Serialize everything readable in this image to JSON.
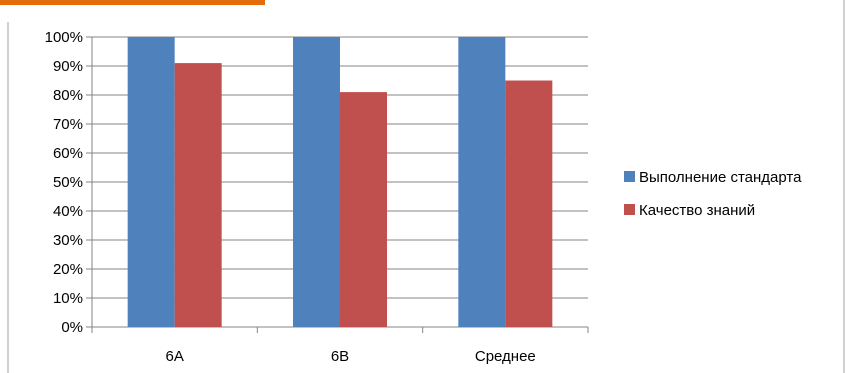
{
  "chart_data": {
    "type": "bar",
    "categories": [
      "6А",
      "6В",
      "Среднее"
    ],
    "series": [
      {
        "name": "Выполнение стандарта",
        "values": [
          100,
          100,
          100
        ],
        "color": "#4F81BD"
      },
      {
        "name": "Качество знаний",
        "values": [
          91,
          81,
          85
        ],
        "color": "#C0504D"
      }
    ],
    "ylim": [
      0,
      100
    ],
    "yticks": [
      "0%",
      "10%",
      "20%",
      "30%",
      "40%",
      "50%",
      "60%",
      "70%",
      "80%",
      "90%",
      "100%"
    ],
    "grid": true,
    "legend": "right",
    "title": "",
    "xlabel": "",
    "ylabel": ""
  },
  "colors": {
    "orange_accent": "#E46C0A",
    "frame": "#A0A0A0",
    "grid": "#868686"
  }
}
